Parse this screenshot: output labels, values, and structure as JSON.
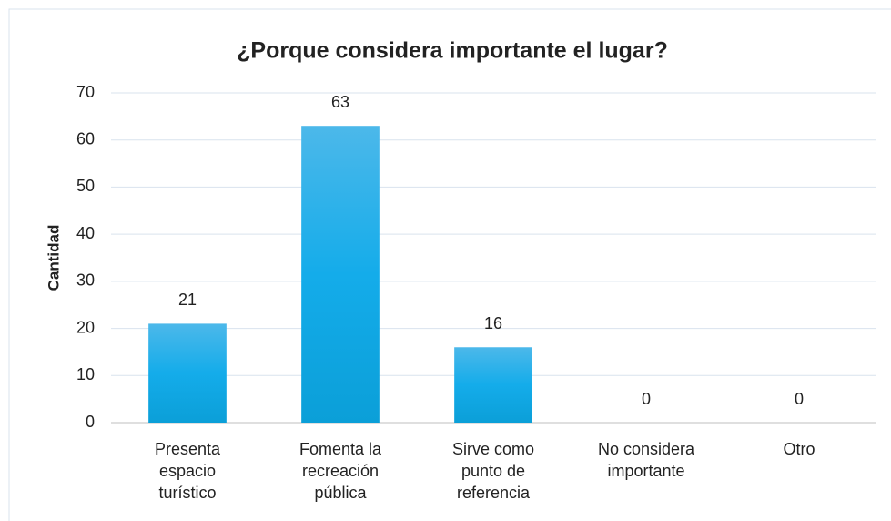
{
  "chart_data": {
    "type": "bar",
    "title": "¿Porque considera importante el lugar?",
    "y_label": "Cantidad",
    "categories": [
      "Presenta espacio turístico",
      "Fomenta la recreación pública",
      "Sirve como punto de referencia",
      "No considera importante",
      "Otro"
    ],
    "values": [
      21,
      63,
      16,
      0,
      0
    ],
    "color": "#1aa9e3",
    "ylim": [
      0,
      70
    ],
    "yticks": [
      0,
      10,
      20,
      30,
      40,
      50,
      60,
      70
    ],
    "grid": true
  }
}
